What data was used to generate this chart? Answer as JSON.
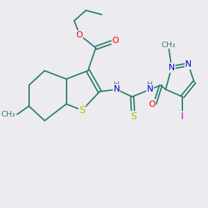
{
  "background_color": "#ebebf0",
  "bond_color": "#2d7d6e",
  "atom_colors": {
    "O": "#ff0000",
    "S": "#b8b800",
    "N": "#0000cc",
    "I": "#cc00bb",
    "H": "#5a7a7a",
    "C": "#2d7d6e"
  },
  "font_size": 9,
  "fig_size": [
    3.0,
    3.0
  ],
  "dpi": 100
}
